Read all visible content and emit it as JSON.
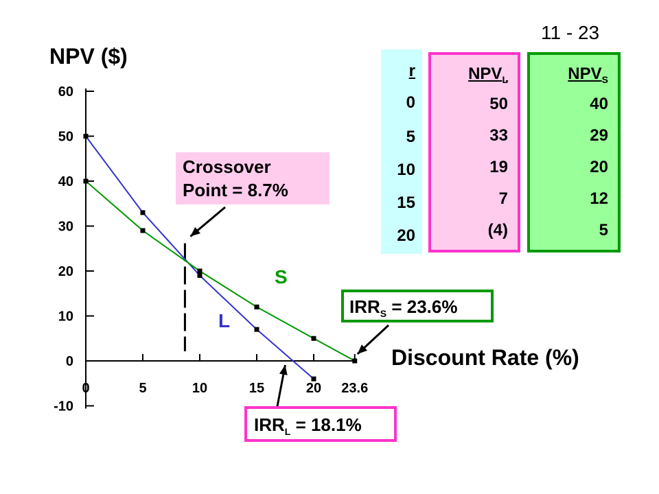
{
  "slide_number": "11 - 23",
  "chart_data": {
    "type": "line",
    "ylabel": "NPV ($)",
    "xlabel": "Discount Rate (%)",
    "x_ticks": [
      "0",
      "5",
      "10",
      "15",
      "20",
      "23.6"
    ],
    "x_tick_values": [
      0,
      5,
      10,
      15,
      20,
      23.6
    ],
    "y_ticks": [
      "60",
      "50",
      "40",
      "30",
      "20",
      "10",
      "0",
      "-10"
    ],
    "y_tick_values": [
      60,
      50,
      40,
      30,
      20,
      10,
      0,
      -10
    ],
    "xlim": [
      0,
      23.6
    ],
    "ylim": [
      -10,
      60
    ],
    "grid": false,
    "series": [
      {
        "name": "L",
        "color": "#3333cc",
        "x": [
          0,
          5,
          10,
          15,
          20
        ],
        "y": [
          50,
          33,
          19,
          7,
          -4
        ]
      },
      {
        "name": "S",
        "color": "#009900",
        "x": [
          0,
          5,
          10,
          15,
          20,
          23.6
        ],
        "y": [
          40,
          29,
          20,
          12,
          5,
          0
        ]
      }
    ],
    "crossover": {
      "x": 8.7,
      "y": 21.9
    },
    "irr_l": {
      "x": 18.1,
      "y": 0
    },
    "irr_s": {
      "x": 23.6,
      "y": 0
    }
  },
  "table": {
    "rate_header": "r",
    "l_header_main": "NPV",
    "l_header_sub": "L",
    "s_header_main": "NPV",
    "s_header_sub": "S",
    "rates": [
      "0",
      "5",
      "10",
      "15",
      "20"
    ],
    "npv_l": [
      "50",
      "33",
      "19",
      "7",
      "(4)"
    ],
    "npv_s": [
      "40",
      "29",
      "20",
      "12",
      "5"
    ]
  },
  "callouts": {
    "crossover_line1": "Crossover",
    "crossover_line2": "Point  =  8.7%",
    "irr_s_main": "IRR",
    "irr_s_sub": "S",
    "irr_s_value": " = 23.6%",
    "irr_l_main": "IRR",
    "irr_l_sub": "L",
    "irr_l_value": " = 18.1%"
  },
  "series_labels": {
    "s": "S",
    "l": "L"
  }
}
